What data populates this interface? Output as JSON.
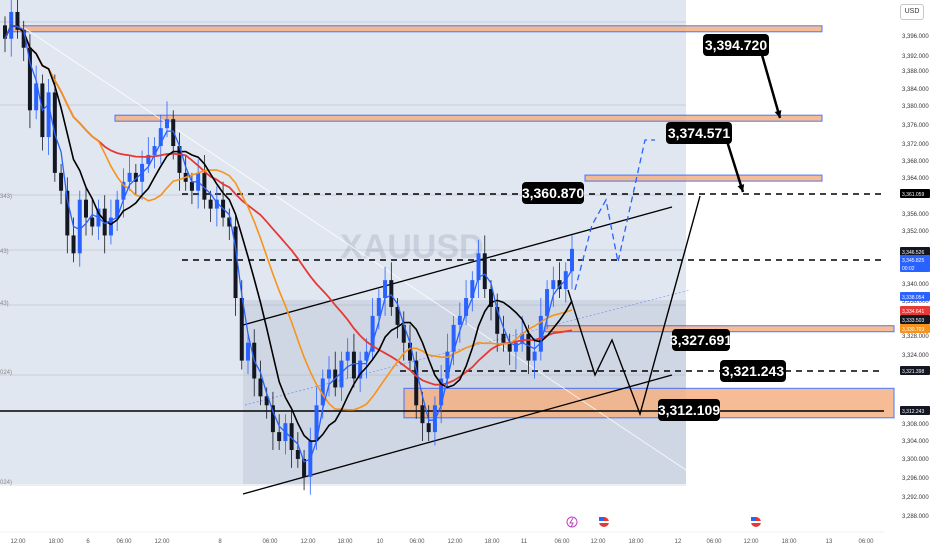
{
  "currency_button": "USD",
  "watermark": "XAUUSD",
  "colors": {
    "bull": "#2962ff",
    "bear": "#131722",
    "ema_fast": "#2962ff",
    "ema_mid": "#000000",
    "ema_slow": "#f7931a",
    "ma_long": "#e53935",
    "zone_fill": "#f4b183",
    "zone_border": "#2962ff",
    "label_bg": "#000000"
  },
  "y_axis_ticks": [
    "3,396.000",
    "3,392.000",
    "3,388.000",
    "3,384.000",
    "3,380.000",
    "3,376.000",
    "3,372.000",
    "3,368.000",
    "3,364.000",
    "3,356.000",
    "3,352.000",
    "3,340.000",
    "3,336.000",
    "3,328.000",
    "3,324.000",
    "3,308.000",
    "3,304.000",
    "3,300.000",
    "3,296.000",
    "3,292.000",
    "3,288.000"
  ],
  "price_badges": [
    {
      "value": "3,361.059",
      "bg": "#000000"
    },
    {
      "value": "3,346.526",
      "bg": "#131722"
    },
    {
      "value": "3,345.825",
      "bg": "#2962ff"
    },
    {
      "value": "00:02",
      "bg": "#2962ff"
    },
    {
      "value": "3,338.054",
      "bg": "#2962ff"
    },
    {
      "value": "3,334.641",
      "bg": "#e53935"
    },
    {
      "value": "3,333.503",
      "bg": "#131722"
    },
    {
      "value": "3,330.703",
      "bg": "#f7931a"
    },
    {
      "value": "3,321.398",
      "bg": "#131722"
    },
    {
      "value": "3,312.243",
      "bg": "#131722"
    }
  ],
  "left_edge_ticks": [
    "343)",
    "43)",
    "43)",
    "024)",
    "024)"
  ],
  "x_axis_ticks": [
    "12:00",
    "18:00",
    "6",
    "06:00",
    "12:00",
    "8",
    "06:00",
    "12:00",
    "18:00",
    "10",
    "06:00",
    "12:00",
    "18:00",
    "11",
    "06:00",
    "12:00",
    "18:00",
    "12",
    "06:00",
    "12:00",
    "18:00",
    "13",
    "06:00"
  ],
  "levels": [
    {
      "label": "3,394.720",
      "price": 3394.72
    },
    {
      "label": "3,374.571",
      "price": 3374.571
    },
    {
      "label": "3,360.870",
      "price": 3360.87
    },
    {
      "label": "3,327.691",
      "price": 3327.691
    },
    {
      "label": "3,321.243",
      "price": 3321.243
    },
    {
      "label": "3,312.109",
      "price": 3312.109
    }
  ],
  "chart_data": {
    "type": "candlestick",
    "symbol": "XAUUSD",
    "currency": "USD",
    "y_range": [
      3286,
      3400
    ],
    "candles_close": [
      3392,
      3398,
      3394,
      3390,
      3376,
      3382,
      3370,
      3380,
      3362,
      3358,
      3348,
      3344,
      3356,
      3352,
      3350,
      3354,
      3348,
      3352,
      3356,
      3360,
      3362,
      3360,
      3364,
      3366,
      3368,
      3372,
      3374,
      3368,
      3362,
      3360,
      3358,
      3362,
      3356,
      3354,
      3356,
      3352,
      3350,
      3334,
      3320,
      3324,
      3316,
      3312,
      3310,
      3304,
      3302,
      3306,
      3300,
      3298,
      3294,
      3302,
      3310,
      3316,
      3318,
      3314,
      3320,
      3322,
      3316,
      3320,
      3322,
      3330,
      3334,
      3338,
      3332,
      3328,
      3324,
      3320,
      3310,
      3306,
      3304,
      3310,
      3316,
      3322,
      3328,
      3330,
      3334,
      3338,
      3344,
      3336,
      3332,
      3326,
      3324,
      3322,
      3324,
      3326,
      3320,
      3322,
      3330,
      3336,
      3338,
      3336,
      3340,
      3345
    ],
    "supply_demand_zones": [
      {
        "top": 3394.9,
        "bottom": 3394.0
      },
      {
        "top": 3374.9,
        "bottom": 3374.0
      },
      {
        "top": 3361.5,
        "bottom": 3360.2
      },
      {
        "top": 3327.8,
        "bottom": 3326.6
      },
      {
        "top": 3313.8,
        "bottom": 3307.2
      }
    ],
    "horizontal_levels": [
      3394.72,
      3374.571,
      3360.87,
      3346.526,
      3327.691,
      3321.243,
      3312.109
    ],
    "channel": {
      "lower_start": 3294,
      "lower_end": 3315,
      "upper_start": 3331,
      "upper_end": 3360
    },
    "projections": [
      "down to 3,321.243 then 3,312.109, rally to 3,360.870",
      "alternate: rally to 3,374.571"
    ]
  }
}
